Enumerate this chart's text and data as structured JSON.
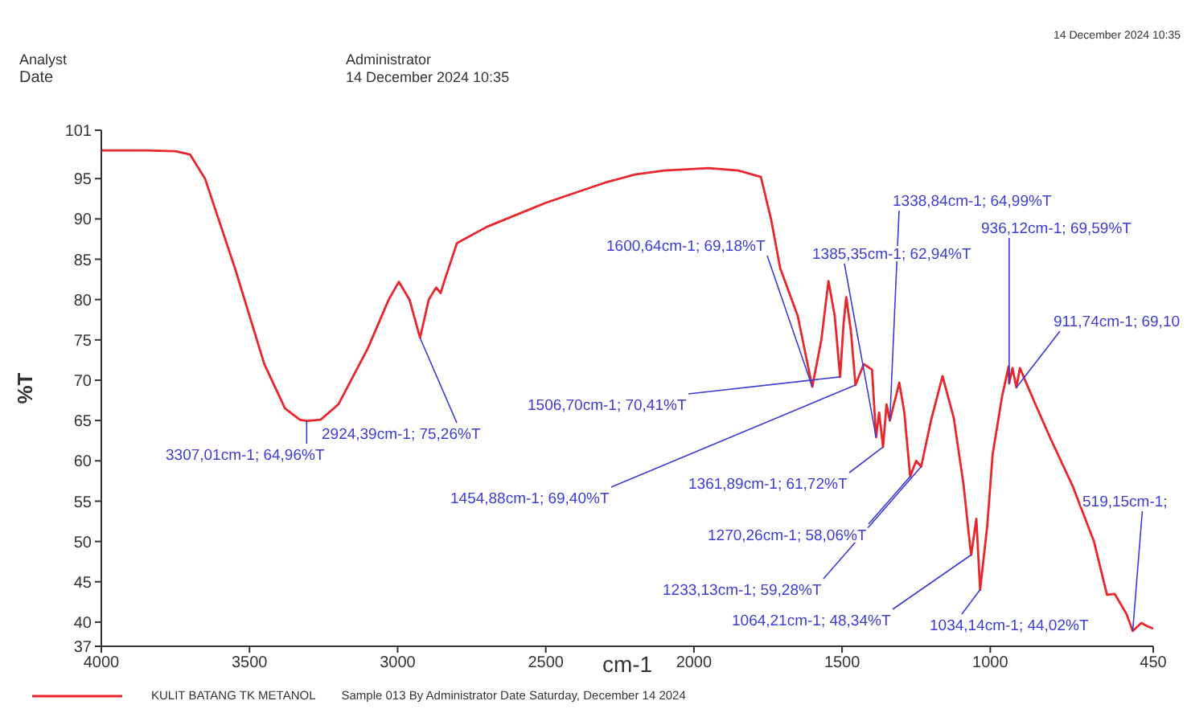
{
  "chart_data": {
    "type": "line",
    "title": "Analyst",
    "subtitle": "Date",
    "annotations": [
      "Administrator",
      "14 December 2024 10:35",
      "14 December 2024 10:35",
      "Sample 013 By Administrator Date Saturday, December 14 2024",
      {
        "text": "3307,01cm-1; 64,96%T",
        "x": 3307.01,
        "y": 64.96
      },
      {
        "text": "2924,39cm-1; 75,26%T",
        "x": 2924.39,
        "y": 75.26
      },
      {
        "text": "1600,64cm-1; 69,18%T",
        "x": 1600.64,
        "y": 69.18
      },
      {
        "text": "1506,70cm-1; 70,41%T",
        "x": 1506.7,
        "y": 70.41
      },
      {
        "text": "1454,88cm-1; 69,40%T",
        "x": 1454.88,
        "y": 69.4
      },
      {
        "text": "1385,35cm-1; 62,94%T",
        "x": 1385.35,
        "y": 62.94
      },
      {
        "text": "1338,84cm-1; 64,99%T",
        "x": 1338.84,
        "y": 64.99
      },
      {
        "text": "1361,89cm-1; 61,72%T",
        "x": 1361.89,
        "y": 61.72
      },
      {
        "text": "936,12cm-1; 69,59%T",
        "x": 936.12,
        "y": 69.59
      },
      {
        "text": "911,74cm-1; 69,10",
        "x": 911.74,
        "y": 69.1
      },
      {
        "text": "1270,26cm-1; 58,06%T",
        "x": 1270.26,
        "y": 58.06
      },
      {
        "text": "1233,13cm-1; 59,28%T",
        "x": 1233.13,
        "y": 59.28
      },
      {
        "text": "1064,21cm-1; 48,34%T",
        "x": 1064.21,
        "y": 48.34
      },
      {
        "text": "1034,14cm-1; 44,02%T",
        "x": 1034.14,
        "y": 44.02
      },
      {
        "text": "519,15cm-1;",
        "x": 519.15,
        "y": 38.9
      }
    ],
    "xlabel": "cm-1",
    "ylabel": "%T",
    "xlim": [
      4000,
      450
    ],
    "ylim": [
      37,
      101
    ],
    "xticks": [
      4000,
      3500,
      3000,
      2500,
      2000,
      1500,
      1000,
      450
    ],
    "yticks": [
      37,
      40,
      45,
      50,
      55,
      60,
      65,
      70,
      75,
      80,
      85,
      90,
      95,
      101
    ],
    "grid": false,
    "legend": "bottom",
    "marker": "none",
    "line_style": "solid",
    "series": [
      {
        "name": "KULIT BATANG TK METANOL",
        "color": "#e8262b",
        "x": [
          4000,
          3850,
          3750,
          3701,
          3650,
          3550,
          3450,
          3380,
          3330,
          3307.01,
          3260,
          3200,
          3100,
          3030,
          2996,
          2960,
          2924.39,
          2895,
          2870,
          2855,
          2845,
          2800,
          2700,
          2500,
          2300,
          2200,
          2100,
          1950,
          1850,
          1774,
          1740,
          1709,
          1650,
          1600.64,
          1570,
          1546,
          1525,
          1506.7,
          1495,
          1486,
          1470,
          1454.88,
          1427,
          1399,
          1385.35,
          1375,
          1361.89,
          1350,
          1338.84,
          1307,
          1290,
          1270.26,
          1250,
          1233.13,
          1200,
          1161,
          1123,
          1090,
          1068,
          1064.21,
          1047,
          1034.14,
          1010,
          992,
          960,
          938,
          936.12,
          925,
          911.74,
          900,
          851,
          797,
          721,
          650,
          606,
          580,
          540,
          519.15,
          490,
          470,
          450
        ],
        "values": [
          98.5,
          98.5,
          98.4,
          98.0,
          95,
          84,
          72,
          66.5,
          65.1,
          64.96,
          65.1,
          67,
          74,
          80,
          82.2,
          80,
          75.26,
          80,
          81.5,
          80.8,
          82,
          87,
          89,
          92,
          94.5,
          95.5,
          96,
          96.3,
          96,
          95.2,
          90,
          83.9,
          78,
          69.18,
          75,
          82.3,
          78,
          70.41,
          77,
          80.3,
          76,
          69.4,
          72,
          71.3,
          62.94,
          66,
          61.72,
          67,
          64.99,
          69.7,
          66,
          58.06,
          60,
          59.28,
          65,
          70.5,
          65.3,
          57,
          49.4,
          48.34,
          52.8,
          44.02,
          52,
          60.8,
          68,
          71.7,
          69.59,
          71.5,
          69.1,
          71.5,
          67.3,
          62.8,
          56.8,
          50,
          43.4,
          43.5,
          41,
          38.9,
          39.9,
          39.5,
          39.2
        ]
      }
    ]
  }
}
